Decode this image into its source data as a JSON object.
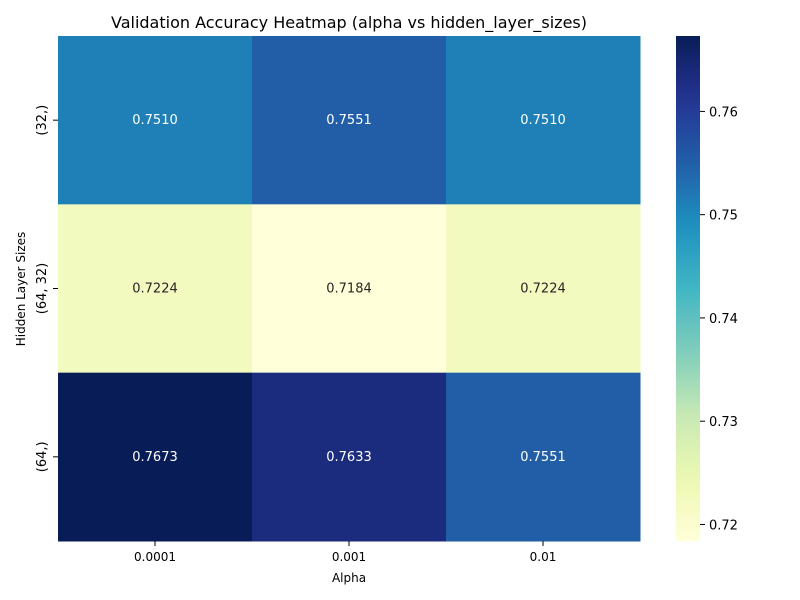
{
  "chart_data": {
    "type": "heatmap",
    "title": "Validation Accuracy Heatmap (alpha vs hidden_layer_sizes)",
    "xlabel": "Alpha",
    "ylabel": "Hidden Layer Sizes",
    "x_categories": [
      "0.0001",
      "0.001",
      "0.01"
    ],
    "y_categories": [
      "(32,)",
      "(64, 32)",
      "(64,)"
    ],
    "values": [
      [
        0.751,
        0.7551,
        0.751
      ],
      [
        0.7224,
        0.7184,
        0.7224
      ],
      [
        0.7673,
        0.7633,
        0.7551
      ]
    ],
    "value_labels": [
      [
        "0.7510",
        "0.7551",
        "0.7510"
      ],
      [
        "0.7224",
        "0.7184",
        "0.7224"
      ],
      [
        "0.7673",
        "0.7633",
        "0.7551"
      ]
    ],
    "colorbar": {
      "colormap": "YlGnBu",
      "vmin": 0.7184,
      "vmax": 0.7673,
      "ticks": [
        "0.72",
        "0.73",
        "0.74",
        "0.75",
        "0.76"
      ]
    }
  }
}
